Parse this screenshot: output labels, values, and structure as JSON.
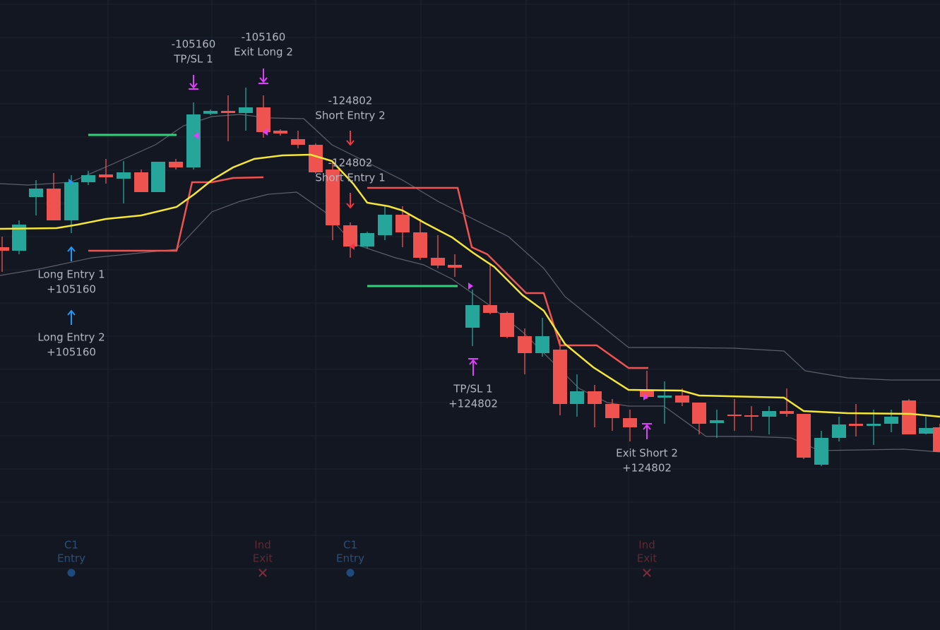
{
  "signals": [
    {
      "lines": [
        "-105160",
        "TP/SL 1"
      ]
    },
    {
      "lines": [
        "-105160",
        "Exit Long 2"
      ]
    },
    {
      "lines": [
        "-124802",
        "Short Entry 2"
      ]
    },
    {
      "lines": [
        "-124802",
        "Short Entry 1"
      ]
    },
    {
      "lines": [
        "Long Entry 1",
        "+105160"
      ]
    },
    {
      "lines": [
        "Long Entry 2",
        "+105160"
      ]
    },
    {
      "lines": [
        "TP/SL 1",
        "+124802"
      ]
    },
    {
      "lines": [
        "Exit Short 2",
        "+124802"
      ]
    }
  ],
  "markers": [
    {
      "lines": [
        "C1",
        "Entry"
      ]
    },
    {
      "lines": [
        "Ind",
        "Exit"
      ]
    },
    {
      "lines": [
        "C1",
        "Entry"
      ]
    },
    {
      "lines": [
        "Ind",
        "Exit"
      ]
    }
  ]
}
